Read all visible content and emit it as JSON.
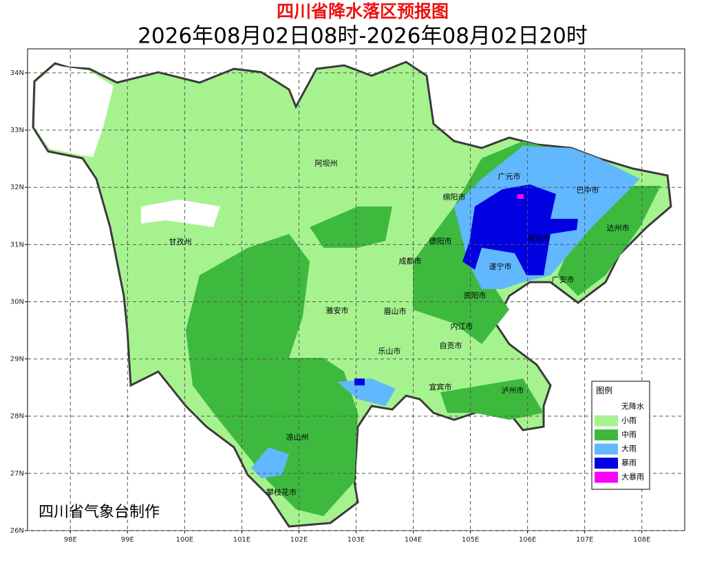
{
  "header": {
    "title": "四川省降水落区预报图",
    "subtitle": "2026年08月02日08时-2026年08月02日20时"
  },
  "map": {
    "xlim": [
      97.25,
      108.75
    ],
    "ylim": [
      26,
      34.42
    ],
    "xticks": [
      {
        "value": 98,
        "label": "98E"
      },
      {
        "value": 99,
        "label": "99E"
      },
      {
        "value": 100,
        "label": "100E"
      },
      {
        "value": 101,
        "label": "101E"
      },
      {
        "value": 102,
        "label": "102E"
      },
      {
        "value": 103,
        "label": "103E"
      },
      {
        "value": 104,
        "label": "104E"
      },
      {
        "value": 105,
        "label": "105E"
      },
      {
        "value": 106,
        "label": "106E"
      },
      {
        "value": 107,
        "label": "107E"
      },
      {
        "value": 108,
        "label": "108E"
      }
    ],
    "yticks": [
      {
        "value": 26,
        "label": "26N"
      },
      {
        "value": 27,
        "label": "27N"
      },
      {
        "value": 28,
        "label": "28N"
      },
      {
        "value": 29,
        "label": "29N"
      },
      {
        "value": 30,
        "label": "30N"
      },
      {
        "value": 31,
        "label": "31N"
      },
      {
        "value": 32,
        "label": "32N"
      },
      {
        "value": 33,
        "label": "33N"
      },
      {
        "value": 34,
        "label": "34N"
      }
    ],
    "grid": true,
    "cities": [
      "阿坝州",
      "甘孜州",
      "广元市",
      "巴中市",
      "绵阳市",
      "德阳市",
      "成都市",
      "南充市",
      "达州市",
      "遂宁市",
      "广安市",
      "资阳市",
      "雅安市",
      "眉山市",
      "内江市",
      "自贡市",
      "乐山市",
      "宜宾市",
      "泸州市",
      "凉山州",
      "攀枝花市"
    ]
  },
  "legend": {
    "title": "图例",
    "items": [
      {
        "label": "无降水",
        "color": "#ffffff"
      },
      {
        "label": "小雨",
        "color": "#a6f28f"
      },
      {
        "label": "中雨",
        "color": "#3dba3d"
      },
      {
        "label": "大雨",
        "color": "#61b8ff"
      },
      {
        "label": "暴雨",
        "color": "#0000e1"
      },
      {
        "label": "大暴雨",
        "color": "#fa00fa"
      }
    ]
  },
  "footer": {
    "credit": "四川省气象台制作"
  }
}
